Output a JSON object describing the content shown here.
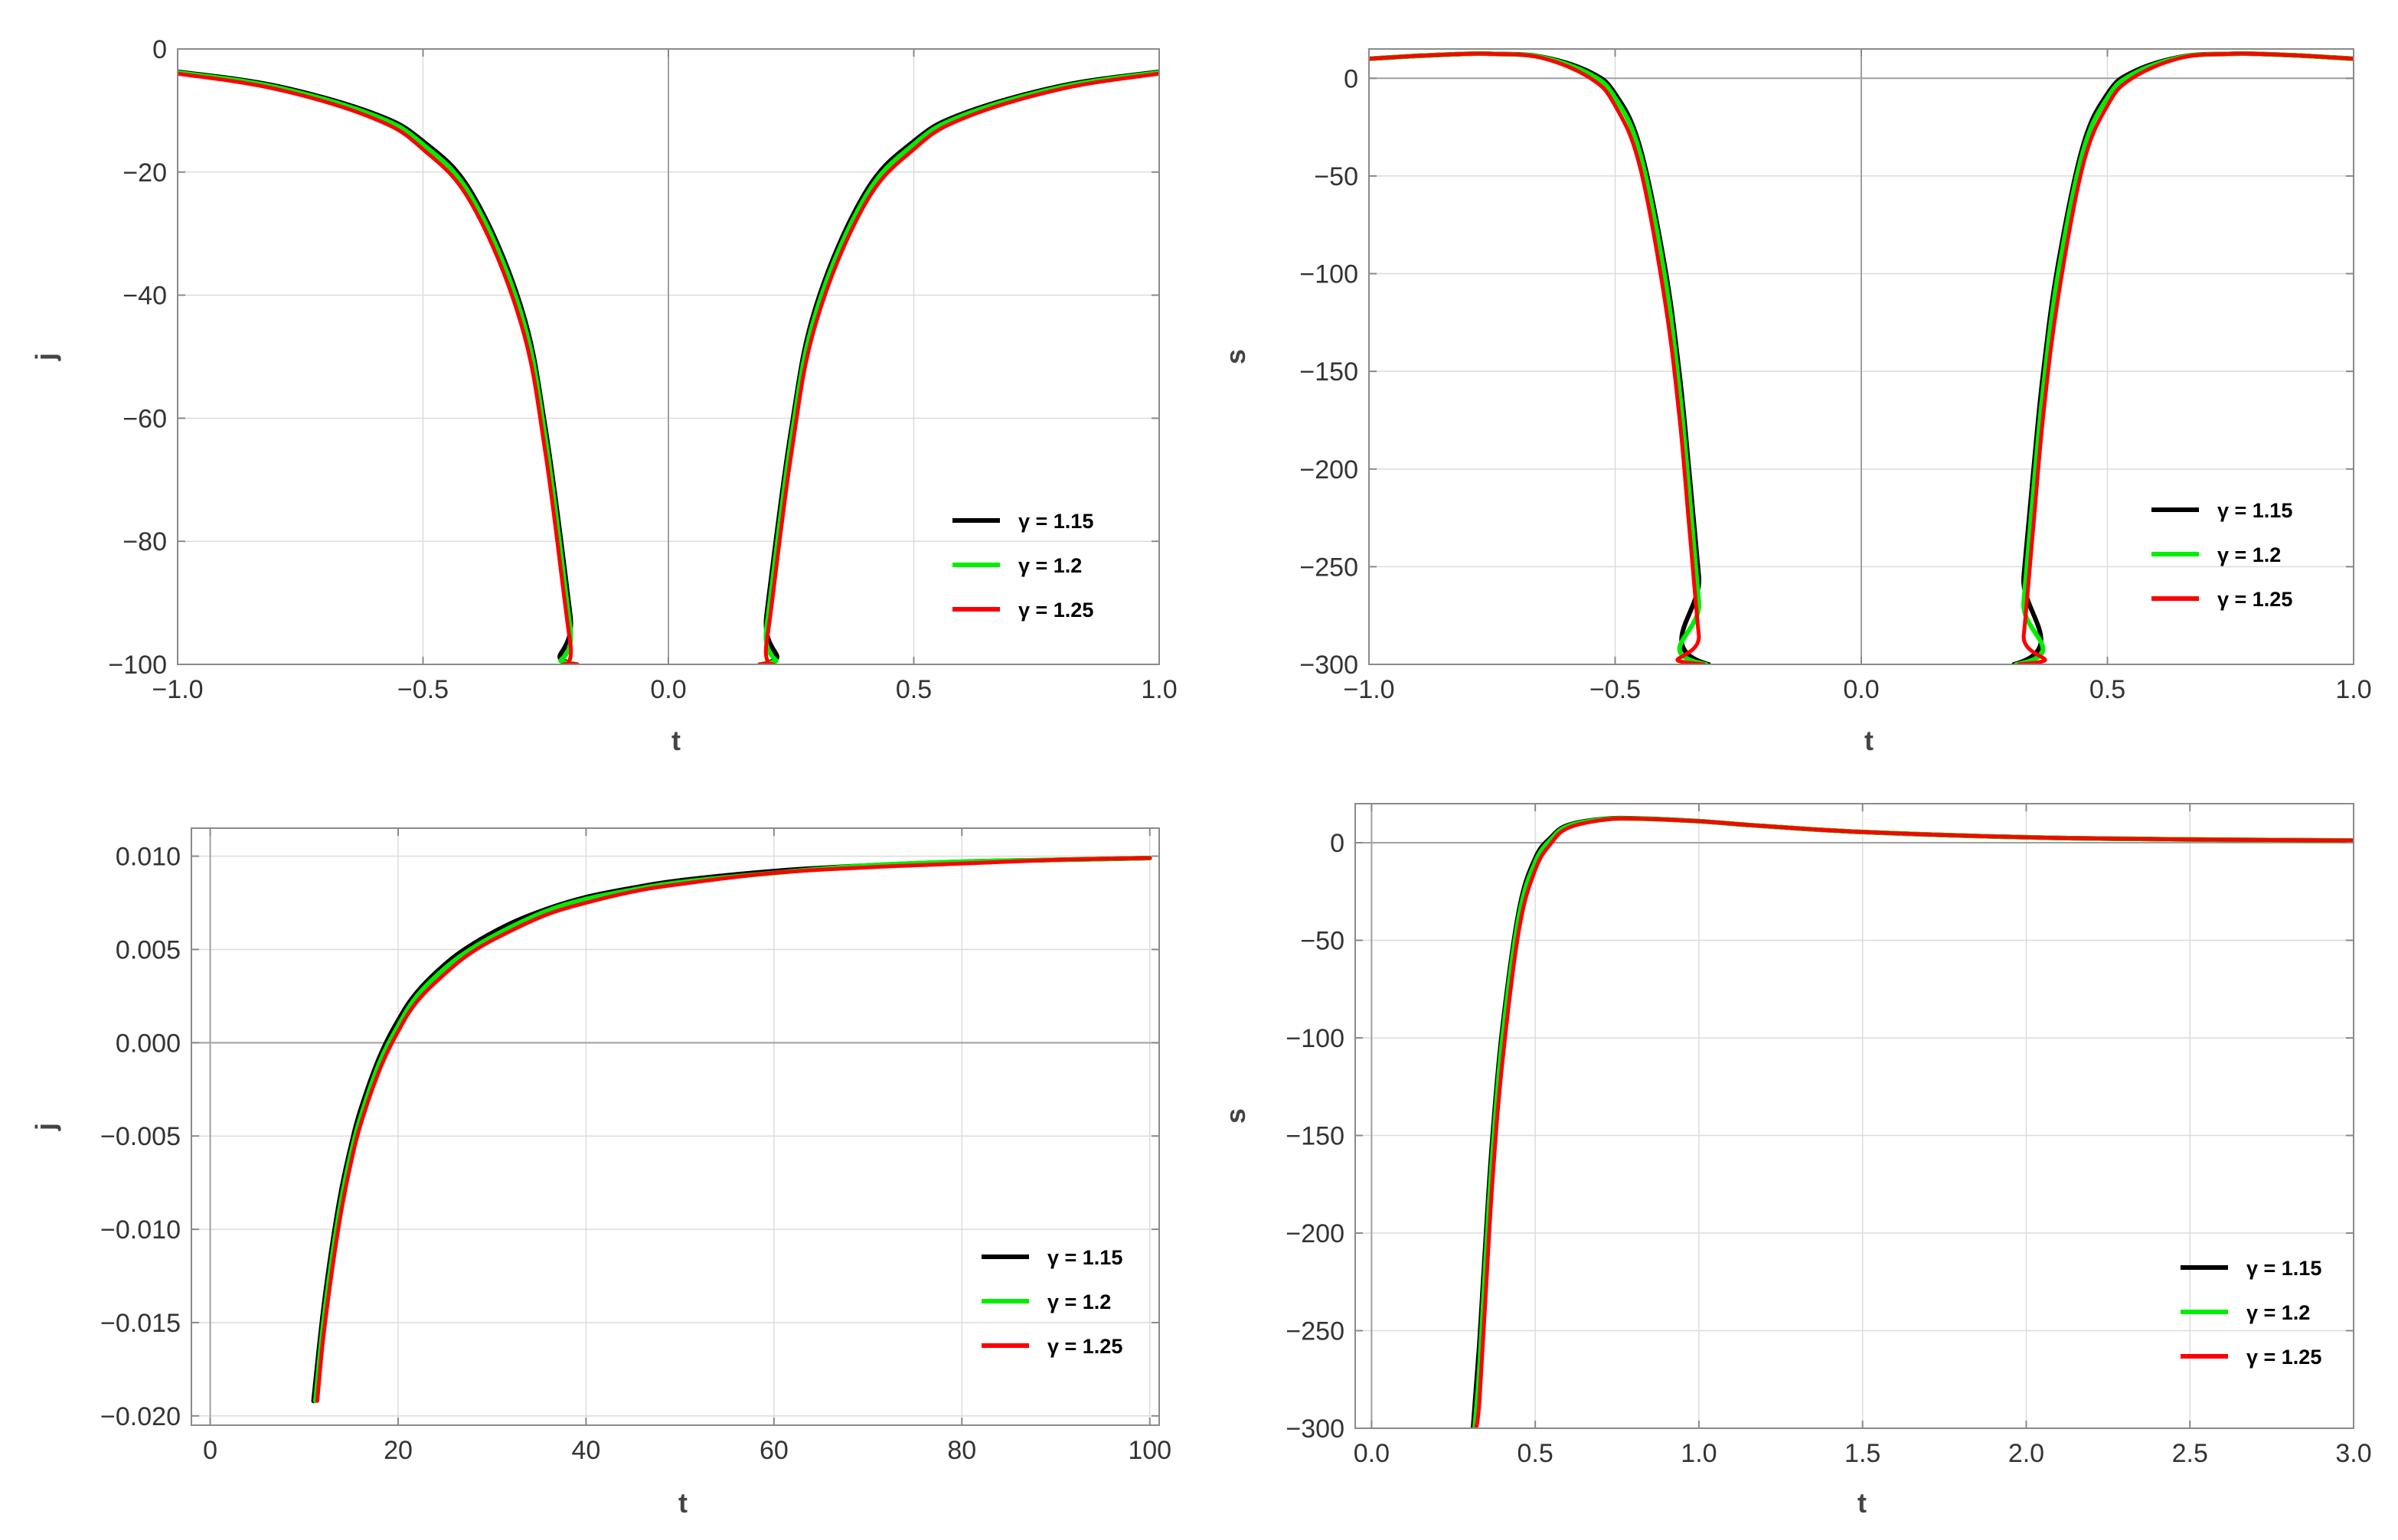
{
  "chart_data": [
    {
      "type": "line",
      "title": "",
      "xlabel": "t",
      "ylabel": "j",
      "xlim": [
        -1.0,
        1.0
      ],
      "ylim": [
        -100,
        0
      ],
      "xticks": [
        "-1.0",
        "-0.5",
        "0.0",
        "0.5",
        "1.0"
      ],
      "xtick_values": [
        -1.0,
        -0.5,
        0.0,
        0.5,
        1.0
      ],
      "yticks": [
        "0",
        "-20",
        "-40",
        "-60",
        "-80",
        "-100"
      ],
      "ytick_values": [
        0,
        -20,
        -40,
        -60,
        -80,
        -100
      ],
      "grid": true,
      "legend_position": "lower-right",
      "series": [
        {
          "name": "γ = 1.15",
          "color": "#000000",
          "x": [
            -1.0,
            -0.8,
            -0.6,
            -0.5,
            -0.4,
            -0.3,
            -0.25,
            -0.2,
            -0.19,
            0.19,
            0.2,
            0.25,
            0.3,
            0.4,
            0.5,
            0.6,
            0.8,
            1.0
          ],
          "y": [
            -3.7,
            -6.0,
            -10.5,
            -15.0,
            -23.5,
            -42.0,
            -62.0,
            -92.0,
            -100,
            -100,
            -92.0,
            -62.0,
            -42.0,
            -23.5,
            -15.0,
            -10.5,
            -6.0,
            -3.7
          ]
        },
        {
          "name": "γ = 1.2",
          "color": "#00ee00",
          "x": [
            -1.0,
            -0.8,
            -0.6,
            -0.5,
            -0.4,
            -0.3,
            -0.25,
            -0.2,
            -0.188,
            0.188,
            0.2,
            0.25,
            0.3,
            0.4,
            0.5,
            0.6,
            0.8,
            1.0
          ],
          "y": [
            -3.8,
            -6.2,
            -10.8,
            -15.5,
            -24.2,
            -43.0,
            -63.5,
            -94.0,
            -100,
            -100,
            -94.0,
            -63.5,
            -43.0,
            -24.2,
            -15.5,
            -10.8,
            -6.2,
            -3.8
          ]
        },
        {
          "name": "γ = 1.25",
          "color": "#ff0000",
          "x": [
            -1.0,
            -0.8,
            -0.6,
            -0.5,
            -0.4,
            -0.3,
            -0.25,
            -0.2,
            -0.185,
            0.185,
            0.2,
            0.25,
            0.3,
            0.4,
            0.5,
            0.6,
            0.8,
            1.0
          ],
          "y": [
            -4.0,
            -6.5,
            -11.3,
            -16.3,
            -25.3,
            -44.7,
            -66.0,
            -96.5,
            -100,
            -100,
            -96.5,
            -66.0,
            -44.7,
            -25.3,
            -16.3,
            -11.3,
            -6.5,
            -4.0
          ]
        }
      ]
    },
    {
      "type": "line",
      "title": "",
      "xlabel": "t",
      "ylabel": "s",
      "xlim": [
        -1.0,
        1.0
      ],
      "ylim": [
        -300,
        15
      ],
      "xticks": [
        "-1.0",
        "-0.5",
        "0.0",
        "0.5",
        "1.0"
      ],
      "xtick_values": [
        -1.0,
        -0.5,
        0.0,
        0.5,
        1.0
      ],
      "yticks": [
        "0",
        "-50",
        "-100",
        "-150",
        "-200",
        "-250",
        "-300"
      ],
      "ytick_values": [
        0,
        -50,
        -100,
        -150,
        -200,
        -250,
        -300
      ],
      "grid": true,
      "legend_position": "lower-right",
      "series": [
        {
          "name": "γ = 1.15",
          "color": "#000000",
          "x": [
            -1.0,
            -0.9,
            -0.8,
            -0.75,
            -0.65,
            -0.55,
            -0.5,
            -0.45,
            -0.4,
            -0.37,
            -0.35,
            -0.33,
            -0.31,
            0.31,
            0.33,
            0.35,
            0.37,
            0.4,
            0.45,
            0.5,
            0.55,
            0.65,
            0.75,
            0.8,
            0.9,
            1.0
          ],
          "y": [
            10,
            11.5,
            12.5,
            12.5,
            11,
            3,
            -8,
            -35,
            -95,
            -150,
            -200,
            -255,
            -300,
            -300,
            -255,
            -200,
            -150,
            -95,
            -35,
            -8,
            3,
            11,
            12.5,
            12.5,
            11.5,
            10
          ]
        },
        {
          "name": "γ = 1.2",
          "color": "#00ee00",
          "x": [
            -1.0,
            -0.9,
            -0.8,
            -0.75,
            -0.65,
            -0.55,
            -0.5,
            -0.45,
            -0.4,
            -0.37,
            -0.35,
            -0.33,
            -0.315,
            0.315,
            0.33,
            0.35,
            0.37,
            0.4,
            0.45,
            0.5,
            0.55,
            0.65,
            0.75,
            0.8,
            0.9,
            1.0
          ],
          "y": [
            10,
            11.5,
            12.5,
            12.5,
            10.8,
            2,
            -10,
            -38,
            -100,
            -158,
            -210,
            -268,
            -300,
            -300,
            -268,
            -210,
            -158,
            -100,
            -38,
            -10,
            2,
            10.8,
            12.5,
            12.5,
            11.5,
            10
          ]
        },
        {
          "name": "γ = 1.25",
          "color": "#ff0000",
          "x": [
            -1.0,
            -0.9,
            -0.8,
            -0.75,
            -0.65,
            -0.55,
            -0.5,
            -0.45,
            -0.4,
            -0.37,
            -0.35,
            -0.33,
            -0.32,
            0.32,
            0.33,
            0.35,
            0.37,
            0.4,
            0.45,
            0.5,
            0.55,
            0.65,
            0.75,
            0.8,
            0.9,
            1.0
          ],
          "y": [
            10,
            11.5,
            12.5,
            12.5,
            10.5,
            0,
            -14,
            -45,
            -112,
            -172,
            -228,
            -285,
            -300,
            -300,
            -285,
            -228,
            -172,
            -112,
            -45,
            -14,
            0,
            10.5,
            12.5,
            12.5,
            11.5,
            10
          ]
        }
      ]
    },
    {
      "type": "line",
      "title": "",
      "xlabel": "t",
      "ylabel": "j",
      "xlim": [
        -2,
        101
      ],
      "ylim": [
        -0.0205,
        0.0115
      ],
      "xticks": [
        "0",
        "20",
        "40",
        "60",
        "80",
        "100"
      ],
      "xtick_values": [
        0,
        20,
        40,
        60,
        80,
        100
      ],
      "yticks": [
        "0.010",
        "0.005",
        "0.000",
        "-0.005",
        "-0.010",
        "-0.015",
        "-0.020"
      ],
      "ytick_values": [
        0.01,
        0.005,
        0.0,
        -0.005,
        -0.01,
        -0.015,
        -0.02
      ],
      "grid": true,
      "legend_position": "lower-right",
      "series": [
        {
          "name": "γ = 1.15",
          "color": "#000000",
          "x": [
            11,
            12,
            13,
            14,
            15,
            16,
            18,
            20,
            22,
            25,
            28,
            32,
            36,
            40,
            45,
            50,
            60,
            70,
            80,
            90,
            100
          ],
          "y": [
            -0.0192,
            -0.0145,
            -0.0108,
            -0.0078,
            -0.0055,
            -0.0036,
            -0.0008,
            0.0012,
            0.0027,
            0.0042,
            0.0053,
            0.0064,
            0.0072,
            0.0078,
            0.0083,
            0.0087,
            0.0092,
            0.0095,
            0.0097,
            0.0098,
            0.0099
          ]
        },
        {
          "name": "γ = 1.2",
          "color": "#00ee00",
          "x": [
            11.2,
            12,
            13,
            14,
            15,
            16,
            18,
            20,
            22,
            25,
            28,
            32,
            36,
            40,
            45,
            50,
            60,
            70,
            80,
            90,
            100
          ],
          "y": [
            -0.0192,
            -0.0152,
            -0.0114,
            -0.0083,
            -0.0059,
            -0.004,
            -0.0011,
            0.0009,
            0.0025,
            0.004,
            0.0051,
            0.0062,
            0.0071,
            0.0077,
            0.0082,
            0.0086,
            0.0091,
            0.0095,
            0.0097,
            0.0098,
            0.0099
          ]
        },
        {
          "name": "γ = 1.25",
          "color": "#ff0000",
          "x": [
            11.4,
            12,
            13,
            14,
            15,
            16,
            18,
            20,
            22,
            25,
            28,
            32,
            36,
            40,
            45,
            50,
            60,
            70,
            80,
            90,
            100
          ],
          "y": [
            -0.0192,
            -0.016,
            -0.0121,
            -0.0089,
            -0.0064,
            -0.0044,
            -0.0015,
            0.0006,
            0.0022,
            0.0037,
            0.0049,
            0.006,
            0.0069,
            0.0075,
            0.0081,
            0.0085,
            0.0091,
            0.0094,
            0.0096,
            0.0098,
            0.0099
          ]
        }
      ]
    },
    {
      "type": "line",
      "title": "",
      "xlabel": "t",
      "ylabel": "s",
      "xlim": [
        -0.05,
        3.0
      ],
      "ylim": [
        -300,
        20
      ],
      "xticks": [
        "0.0",
        "0.5",
        "1.0",
        "1.5",
        "2.0",
        "2.5",
        "3.0"
      ],
      "xtick_values": [
        0.0,
        0.5,
        1.0,
        1.5,
        2.0,
        2.5,
        3.0
      ],
      "yticks": [
        "0",
        "-50",
        "-100",
        "-150",
        "-200",
        "-250",
        "-300"
      ],
      "ytick_values": [
        0,
        -50,
        -100,
        -150,
        -200,
        -250,
        -300
      ],
      "grid": true,
      "legend_position": "lower-right",
      "series": [
        {
          "name": "γ = 1.15",
          "color": "#000000",
          "x": [
            0.31,
            0.33,
            0.35,
            0.37,
            0.4,
            0.45,
            0.5,
            0.55,
            0.6,
            0.7,
            0.8,
            1.0,
            1.2,
            1.5,
            2.0,
            2.5,
            3.0
          ],
          "y": [
            -300,
            -255,
            -200,
            -150,
            -95,
            -35,
            -8,
            3,
            9,
            12,
            12.5,
            11,
            8.5,
            5.5,
            2.8,
            1.7,
            1.1
          ]
        },
        {
          "name": "γ = 1.2",
          "color": "#00ee00",
          "x": [
            0.315,
            0.33,
            0.35,
            0.37,
            0.4,
            0.45,
            0.5,
            0.55,
            0.6,
            0.7,
            0.8,
            1.0,
            1.2,
            1.5,
            2.0,
            2.5,
            3.0
          ],
          "y": [
            -300,
            -268,
            -210,
            -158,
            -100,
            -38,
            -10,
            2,
            8.5,
            11.8,
            12.4,
            11,
            8.5,
            5.5,
            2.8,
            1.7,
            1.1
          ]
        },
        {
          "name": "γ = 1.25",
          "color": "#ff0000",
          "x": [
            0.32,
            0.33,
            0.35,
            0.37,
            0.4,
            0.45,
            0.5,
            0.55,
            0.6,
            0.7,
            0.8,
            1.0,
            1.2,
            1.5,
            2.0,
            2.5,
            3.0
          ],
          "y": [
            -300,
            -285,
            -228,
            -172,
            -112,
            -45,
            -14,
            0,
            7.5,
            11.5,
            12.3,
            11,
            8.5,
            5.5,
            2.8,
            1.7,
            1.1
          ]
        }
      ]
    }
  ]
}
